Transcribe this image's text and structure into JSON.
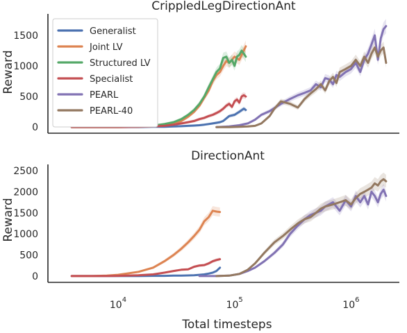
{
  "figure": {
    "xlabel": "Total timesteps"
  },
  "colors": {
    "Generalist": "#4c72b0",
    "Joint LV": "#dd8452",
    "Structured LV": "#55a868",
    "Specialist": "#c44e52",
    "PEARL": "#8172b3",
    "PEARL-40": "#937860"
  },
  "chart_data": [
    {
      "type": "line",
      "title": "CrippledLegDirectionAnt",
      "ylabel": "Reward",
      "xlabel": "",
      "xscale": "log",
      "xlim": [
        2500,
        2600000
      ],
      "ylim": [
        -100,
        1850
      ],
      "yticks": [
        0,
        500,
        1000,
        1500
      ],
      "legend": "top-left",
      "series": [
        {
          "name": "Generalist",
          "x": [
            4000,
            6000,
            8000,
            10000,
            15000,
            20000,
            25000,
            30000,
            35000,
            40000,
            45000,
            50000,
            55000,
            60000,
            65000,
            70000,
            75000,
            80000,
            90000,
            100000,
            110000,
            120000,
            125000
          ],
          "y": [
            0,
            0,
            0,
            0,
            0,
            5,
            5,
            10,
            15,
            20,
            25,
            30,
            40,
            50,
            60,
            70,
            80,
            100,
            180,
            200,
            250,
            300,
            280
          ]
        },
        {
          "name": "Joint LV",
          "x": [
            4000,
            6000,
            8000,
            10000,
            15000,
            20000,
            25000,
            30000,
            35000,
            40000,
            45000,
            50000,
            55000,
            60000,
            65000,
            70000,
            75000,
            80000,
            85000,
            90000,
            95000,
            100000,
            110000,
            120000,
            125000
          ],
          "y": [
            0,
            0,
            0,
            0,
            5,
            15,
            30,
            60,
            100,
            170,
            250,
            350,
            480,
            600,
            750,
            850,
            900,
            1000,
            1080,
            1050,
            1100,
            1150,
            1100,
            1250,
            1320
          ]
        },
        {
          "name": "Structured LV",
          "x": [
            4000,
            6000,
            8000,
            10000,
            15000,
            20000,
            25000,
            30000,
            35000,
            40000,
            45000,
            50000,
            55000,
            60000,
            65000,
            70000,
            75000,
            80000,
            85000,
            90000,
            95000,
            100000,
            105000,
            110000,
            115000,
            120000,
            125000
          ],
          "y": [
            0,
            0,
            0,
            0,
            10,
            25,
            50,
            80,
            130,
            200,
            280,
            380,
            500,
            650,
            780,
            900,
            960,
            1130,
            1150,
            1050,
            1100,
            1000,
            1150,
            1180,
            1250,
            1200,
            1150
          ]
        },
        {
          "name": "Specialist",
          "x": [
            4000,
            6000,
            8000,
            10000,
            15000,
            20000,
            25000,
            30000,
            35000,
            40000,
            45000,
            50000,
            55000,
            60000,
            65000,
            70000,
            75000,
            80000,
            85000,
            90000,
            95000,
            100000,
            105000,
            110000,
            115000,
            120000,
            125000
          ],
          "y": [
            0,
            0,
            0,
            0,
            5,
            10,
            20,
            40,
            60,
            80,
            100,
            130,
            150,
            180,
            200,
            230,
            260,
            300,
            350,
            380,
            330,
            420,
            450,
            400,
            500,
            520,
            500
          ]
        },
        {
          "name": "PEARL",
          "x": [
            70000,
            90000,
            110000,
            130000,
            150000,
            170000,
            200000,
            250000,
            300000,
            350000,
            400000,
            450000,
            500000,
            550000,
            600000,
            650000,
            700000,
            750000,
            800000,
            900000,
            1000000,
            1100000,
            1200000,
            1300000,
            1400000,
            1500000,
            1600000,
            1700000,
            1800000,
            1900000,
            2000000
          ],
          "y": [
            0,
            10,
            30,
            60,
            120,
            200,
            260,
            380,
            460,
            520,
            560,
            600,
            700,
            650,
            800,
            780,
            700,
            850,
            820,
            900,
            950,
            1050,
            900,
            1100,
            1200,
            1350,
            1500,
            1100,
            1450,
            1600,
            1650
          ]
        },
        {
          "name": "PEARL-40",
          "x": [
            70000,
            90000,
            110000,
            130000,
            150000,
            170000,
            200000,
            220000,
            250000,
            300000,
            350000,
            400000,
            450000,
            500000,
            550000,
            600000,
            650000,
            700000,
            750000,
            800000,
            900000,
            1000000,
            1100000,
            1200000,
            1300000,
            1400000,
            1500000,
            1600000,
            1700000,
            1800000,
            1900000,
            2000000
          ],
          "y": [
            0,
            0,
            5,
            10,
            20,
            60,
            180,
            300,
            420,
            380,
            320,
            460,
            550,
            620,
            700,
            600,
            750,
            820,
            720,
            900,
            950,
            1000,
            1100,
            1000,
            1150,
            1050,
            1200,
            1300,
            1150,
            1250,
            1300,
            1050
          ]
        }
      ]
    },
    {
      "type": "line",
      "title": "DirectionAnt",
      "ylabel": "Reward",
      "xlabel": "Total timesteps",
      "xscale": "log",
      "xlim": [
        2500,
        2600000
      ],
      "ylim": [
        -150,
        2650
      ],
      "yticks": [
        0,
        500,
        1000,
        1500,
        2000,
        2500
      ],
      "xticks": [
        10000,
        100000,
        1000000
      ],
      "series": [
        {
          "name": "Generalist",
          "x": [
            4000,
            6000,
            8000,
            10000,
            15000,
            20000,
            25000,
            30000,
            35000,
            40000,
            45000,
            50000,
            55000,
            60000,
            65000,
            70000,
            75000
          ],
          "y": [
            0,
            0,
            0,
            0,
            0,
            5,
            5,
            10,
            10,
            15,
            20,
            30,
            40,
            60,
            80,
            120,
            200
          ]
        },
        {
          "name": "Joint LV",
          "x": [
            4000,
            6000,
            8000,
            10000,
            15000,
            20000,
            25000,
            30000,
            35000,
            40000,
            45000,
            50000,
            55000,
            60000,
            65000,
            70000,
            75000
          ],
          "y": [
            0,
            0,
            10,
            30,
            100,
            200,
            350,
            500,
            650,
            800,
            950,
            1100,
            1300,
            1400,
            1550,
            1530,
            1520
          ]
        },
        {
          "name": "Specialist",
          "x": [
            4000,
            6000,
            8000,
            10000,
            15000,
            20000,
            25000,
            30000,
            35000,
            40000,
            45000,
            50000,
            55000,
            60000,
            65000,
            70000,
            75000
          ],
          "y": [
            0,
            0,
            0,
            5,
            20,
            40,
            80,
            120,
            150,
            160,
            220,
            250,
            260,
            300,
            350,
            380,
            400
          ]
        },
        {
          "name": "PEARL",
          "x": [
            50000,
            70000,
            90000,
            110000,
            130000,
            150000,
            180000,
            220000,
            260000,
            300000,
            350000,
            400000,
            450000,
            500000,
            550000,
            600000,
            700000,
            800000,
            900000,
            1000000,
            1100000,
            1200000,
            1300000,
            1400000,
            1500000,
            1600000,
            1700000,
            1800000,
            1900000,
            2000000
          ],
          "y": [
            0,
            0,
            10,
            50,
            120,
            200,
            350,
            550,
            750,
            1000,
            1200,
            1350,
            1450,
            1500,
            1550,
            1650,
            1750,
            1550,
            1800,
            1650,
            1900,
            1750,
            1900,
            1700,
            2000,
            1900,
            1750,
            1950,
            2050,
            1900
          ]
        },
        {
          "name": "PEARL-40",
          "x": [
            70000,
            90000,
            110000,
            130000,
            150000,
            180000,
            220000,
            260000,
            300000,
            350000,
            400000,
            450000,
            500000,
            550000,
            600000,
            700000,
            800000,
            900000,
            1000000,
            1100000,
            1200000,
            1300000,
            1400000,
            1500000,
            1600000,
            1700000,
            1800000,
            1900000,
            2000000
          ],
          "y": [
            0,
            10,
            50,
            150,
            300,
            550,
            800,
            950,
            1100,
            1250,
            1350,
            1400,
            1500,
            1600,
            1650,
            1700,
            1750,
            1800,
            1700,
            1850,
            1950,
            2000,
            2050,
            2100,
            2200,
            2150,
            2250,
            2300,
            2250
          ]
        }
      ]
    }
  ]
}
